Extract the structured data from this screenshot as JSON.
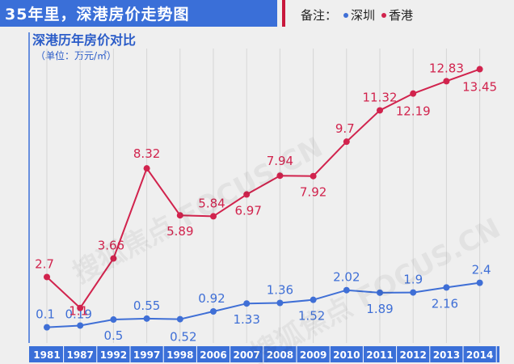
{
  "banner_title": "35年里，深港房价走势图",
  "legend": {
    "prefix": "备注：",
    "items": [
      "深圳",
      "香港"
    ]
  },
  "subtitle": "深港历年房价对比",
  "unit": "（单位：万元/㎡）",
  "watermark": "搜狐焦点 FOCUS.CN",
  "colors": {
    "shenzhen": "#3f6fd6",
    "hongkong": "#d1234d",
    "banner": "#3a6fd8",
    "axis_bg": "#3a6fd8"
  },
  "chart_data": {
    "type": "line",
    "title": "深港历年房价对比",
    "ylabel": "（单位：万元/㎡）",
    "categories": [
      "1981",
      "1987",
      "1992",
      "1997",
      "1998",
      "2006",
      "2007",
      "2008",
      "2009",
      "2010",
      "2011",
      "2012",
      "2013",
      "2014"
    ],
    "series": [
      {
        "name": "深圳",
        "color": "#3f6fd6",
        "values": [
          0.1,
          0.19,
          0.5,
          0.55,
          0.52,
          0.92,
          1.33,
          1.36,
          1.52,
          2.02,
          1.89,
          1.9,
          2.16,
          2.4
        ]
      },
      {
        "name": "香港",
        "color": "#d1234d",
        "values": [
          2.7,
          1.1,
          3.66,
          8.32,
          5.89,
          5.84,
          6.97,
          7.94,
          7.92,
          9.7,
          11.32,
          12.19,
          12.83,
          13.45
        ]
      }
    ]
  }
}
